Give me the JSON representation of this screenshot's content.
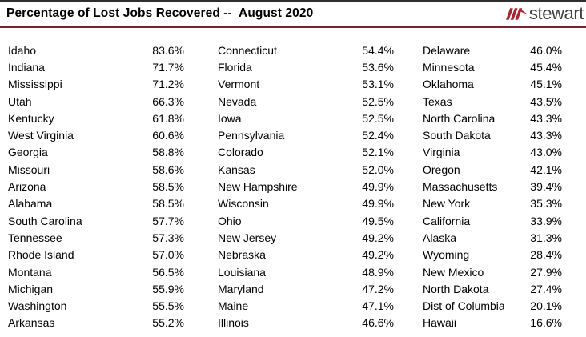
{
  "header": {
    "title": "Percentage of Lost Jobs Recovered --  August 2020",
    "logo": {
      "text": "stewart",
      "mark_icon": "three-slashes-peak",
      "red": "#a52430",
      "text_color": "#3f3f3f"
    }
  },
  "colors": {
    "background": "#ffffff",
    "top_border": "#2e2e2e",
    "header_rule": "#77272b",
    "body_text": "#000000"
  },
  "chart_data": {
    "type": "table",
    "title": "Percentage of Lost Jobs Recovered -- August 2020",
    "value_unit": "percent of lost jobs recovered",
    "columns": [
      [
        {
          "state": "Idaho",
          "value": "83.6%"
        },
        {
          "state": "Indiana",
          "value": "71.7%"
        },
        {
          "state": "Mississippi",
          "value": "71.2%"
        },
        {
          "state": "Utah",
          "value": "66.3%"
        },
        {
          "state": "Kentucky",
          "value": "61.8%"
        },
        {
          "state": "West Virginia",
          "value": "60.6%"
        },
        {
          "state": "Georgia",
          "value": "58.8%"
        },
        {
          "state": "Missouri",
          "value": "58.6%"
        },
        {
          "state": "Arizona",
          "value": "58.5%"
        },
        {
          "state": "Alabama",
          "value": "58.5%"
        },
        {
          "state": "South Carolina",
          "value": "57.7%"
        },
        {
          "state": "Tennessee",
          "value": "57.3%"
        },
        {
          "state": "Rhode Island",
          "value": "57.0%"
        },
        {
          "state": "Montana",
          "value": "56.5%"
        },
        {
          "state": "Michigan",
          "value": "55.9%"
        },
        {
          "state": "Washington",
          "value": "55.5%"
        },
        {
          "state": "Arkansas",
          "value": "55.2%"
        }
      ],
      [
        {
          "state": "Connecticut",
          "value": "54.4%"
        },
        {
          "state": "Florida",
          "value": "53.6%"
        },
        {
          "state": "Vermont",
          "value": "53.1%"
        },
        {
          "state": "Nevada",
          "value": "52.5%"
        },
        {
          "state": "Iowa",
          "value": "52.5%"
        },
        {
          "state": "Pennsylvania",
          "value": "52.4%"
        },
        {
          "state": "Colorado",
          "value": "52.1%"
        },
        {
          "state": "Kansas",
          "value": "52.0%"
        },
        {
          "state": "New Hampshire",
          "value": "49.9%"
        },
        {
          "state": "Wisconsin",
          "value": "49.9%"
        },
        {
          "state": "Ohio",
          "value": "49.5%"
        },
        {
          "state": "New Jersey",
          "value": "49.2%"
        },
        {
          "state": "Nebraska",
          "value": "49.2%"
        },
        {
          "state": "Louisiana",
          "value": "48.9%"
        },
        {
          "state": "Maryland",
          "value": "47.2%"
        },
        {
          "state": "Maine",
          "value": "47.1%"
        },
        {
          "state": "Illinois",
          "value": "46.6%"
        }
      ],
      [
        {
          "state": "Delaware",
          "value": "46.0%"
        },
        {
          "state": "Minnesota",
          "value": "45.4%"
        },
        {
          "state": "Oklahoma",
          "value": "45.1%"
        },
        {
          "state": "Texas",
          "value": "43.5%"
        },
        {
          "state": "North Carolina",
          "value": "43.3%"
        },
        {
          "state": "South Dakota",
          "value": "43.3%"
        },
        {
          "state": "Virginia",
          "value": "43.0%"
        },
        {
          "state": "Oregon",
          "value": "42.1%"
        },
        {
          "state": "Massachusetts",
          "value": "39.4%"
        },
        {
          "state": "New York",
          "value": "35.3%"
        },
        {
          "state": "California",
          "value": "33.9%"
        },
        {
          "state": "Alaska",
          "value": "31.3%"
        },
        {
          "state": "Wyoming",
          "value": "28.4%"
        },
        {
          "state": "New Mexico",
          "value": "27.9%"
        },
        {
          "state": "North Dakota",
          "value": "27.4%"
        },
        {
          "state": "Dist of Columbia",
          "value": "20.1%"
        },
        {
          "state": "Hawaii",
          "value": "16.6%"
        }
      ]
    ]
  }
}
